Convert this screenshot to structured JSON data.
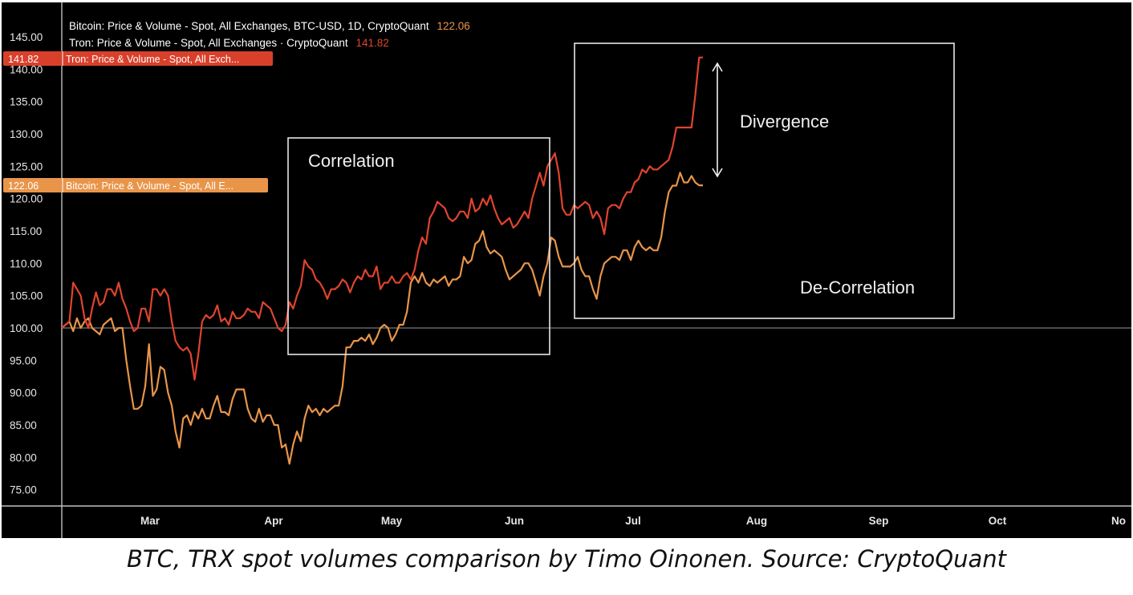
{
  "caption": "BTC, TRX spot volumes comparison by Timo Oinonen. Source: CryptoQuant",
  "legend": {
    "line1_text": "Bitcoin: Price & Volume - Spot, All Exchanges, BTC-USD, 1D, CryptoQuant",
    "line1_value": "122.06",
    "line2_text": "Tron: Price & Volume - Spot, All Exchanges · CryptoQuant",
    "line2_value": "141.82"
  },
  "price_tags": {
    "tron": {
      "value": "141.82",
      "label": "Tron: Price & Volume - Spot, All Exch..."
    },
    "bitcoin": {
      "value": "122.06",
      "label": "Bitcoin: Price & Volume - Spot, All E..."
    }
  },
  "annotations": {
    "correlation": "Correlation",
    "divergence": "Divergence",
    "decorrelation": "De-Correlation"
  },
  "colors": {
    "background": "#000000",
    "bitcoin": "#e8954a",
    "tron": "#e0442e",
    "grid_text": "#e6e6e6",
    "box": "#e6e6e6"
  },
  "chart_data": {
    "type": "line",
    "x_start": "2024-02-15",
    "x_end": "2024-07-19",
    "xticks": [
      "Mar",
      "Apr",
      "May",
      "Jun",
      "Jul",
      "Aug",
      "Sep",
      "Oct",
      "No"
    ],
    "yticks": [
      "75.00",
      "80.00",
      "85.00",
      "90.00",
      "95.00",
      "100.00",
      "105.00",
      "110.00",
      "115.00",
      "120.00",
      "125.00",
      "130.00",
      "135.00",
      "140.00",
      "145.00"
    ],
    "ylim": [
      72.5,
      148
    ],
    "baseline": 100,
    "series": [
      {
        "name": "Bitcoin: Price & Volume - Spot, All Exchanges, BTC-USD, 1D, CryptoQuant",
        "key": "bitcoin",
        "values": [
          100,
          100.5,
          101,
          99.5,
          101.5,
          100,
          101,
          101.5,
          100,
          99.5,
          99,
          100.5,
          101,
          101.5,
          99.5,
          100,
          100,
          95,
          91,
          87.5,
          87.5,
          88,
          91,
          97.5,
          89.5,
          90.5,
          94,
          93.5,
          90,
          88,
          84,
          81.5,
          86,
          86.5,
          85,
          87,
          86,
          87.5,
          86,
          86,
          88,
          89.5,
          87,
          87,
          86.5,
          89,
          90.5,
          90.5,
          90.5,
          87.5,
          86,
          85.5,
          87.5,
          85.5,
          86.5,
          86.5,
          85,
          85,
          81.5,
          82,
          79,
          82,
          84,
          82.5,
          86,
          88,
          87,
          87.5,
          86.5,
          87.5,
          87,
          87.5,
          88,
          88,
          91,
          97,
          97,
          98,
          98,
          98.5,
          98,
          99,
          97.5,
          98.5,
          100,
          100.5,
          100,
          98,
          99,
          100.5,
          100.5,
          102.5,
          107,
          108,
          107,
          108.5,
          107,
          106.5,
          107.5,
          107,
          107.5,
          108,
          106.5,
          107.5,
          107.5,
          108,
          111,
          110,
          110.5,
          113,
          113.5,
          115,
          112.5,
          111.5,
          112,
          111.5,
          111,
          109,
          107.5,
          108,
          108.5,
          109,
          110,
          110,
          109,
          107,
          105,
          108,
          110,
          114,
          113.5,
          111,
          109.5,
          109.5,
          109.5,
          110,
          111,
          109,
          108,
          108,
          106,
          104.5,
          108,
          110,
          110.5,
          111,
          111,
          110.5,
          112,
          112,
          110.5,
          112.5,
          113.5,
          112.5,
          112,
          112.5,
          112,
          112,
          114,
          118,
          121,
          122,
          122,
          124,
          122.5,
          122.5,
          123.5,
          122.5,
          122.06,
          122.06
        ]
      },
      {
        "name": "Tron: Price & Volume - Spot, All Exchanges · CryptoQuant",
        "key": "tron",
        "values": [
          100,
          100.5,
          101,
          107,
          106,
          105,
          101.5,
          100,
          103,
          105.5,
          103.5,
          104,
          106,
          106,
          105,
          107,
          104.5,
          103,
          101,
          99.5,
          100,
          103,
          103,
          101,
          106,
          106,
          105,
          106,
          105,
          101,
          98,
          97,
          96.5,
          97,
          96,
          92,
          96,
          101,
          102,
          101.5,
          102,
          103.5,
          101,
          101.5,
          100.5,
          102.5,
          101.5,
          101.5,
          102,
          103,
          102.5,
          102.5,
          101.5,
          104,
          103.5,
          103,
          101.5,
          100,
          99.5,
          100.5,
          104,
          103,
          105,
          106.5,
          110.5,
          109.5,
          109,
          107.5,
          107,
          106,
          104.5,
          106,
          106,
          106.5,
          107.5,
          107,
          105.5,
          107,
          108,
          107.5,
          109,
          108,
          108,
          109.5,
          106,
          107,
          107,
          108,
          107,
          107,
          108,
          108.5,
          107.5,
          109,
          112,
          114,
          113,
          117,
          118,
          119.5,
          119,
          118.5,
          117,
          116.5,
          117,
          118,
          118,
          117,
          120,
          118,
          118.5,
          120,
          119,
          120.5,
          118.5,
          117,
          116,
          116.5,
          117,
          115.5,
          116,
          117,
          118,
          117,
          120,
          122,
          124,
          122,
          125,
          126,
          127,
          124,
          118.5,
          117.5,
          117.5,
          119,
          118.5,
          119,
          119.5,
          119,
          117,
          118,
          117,
          114.5,
          118.5,
          119,
          119,
          118.5,
          120,
          121,
          121,
          122.5,
          123,
          124.5,
          124,
          125,
          124.5,
          124.5,
          125,
          125.5,
          126,
          128,
          131,
          131,
          131,
          131,
          131,
          136,
          141.82,
          141.82
        ]
      }
    ]
  }
}
